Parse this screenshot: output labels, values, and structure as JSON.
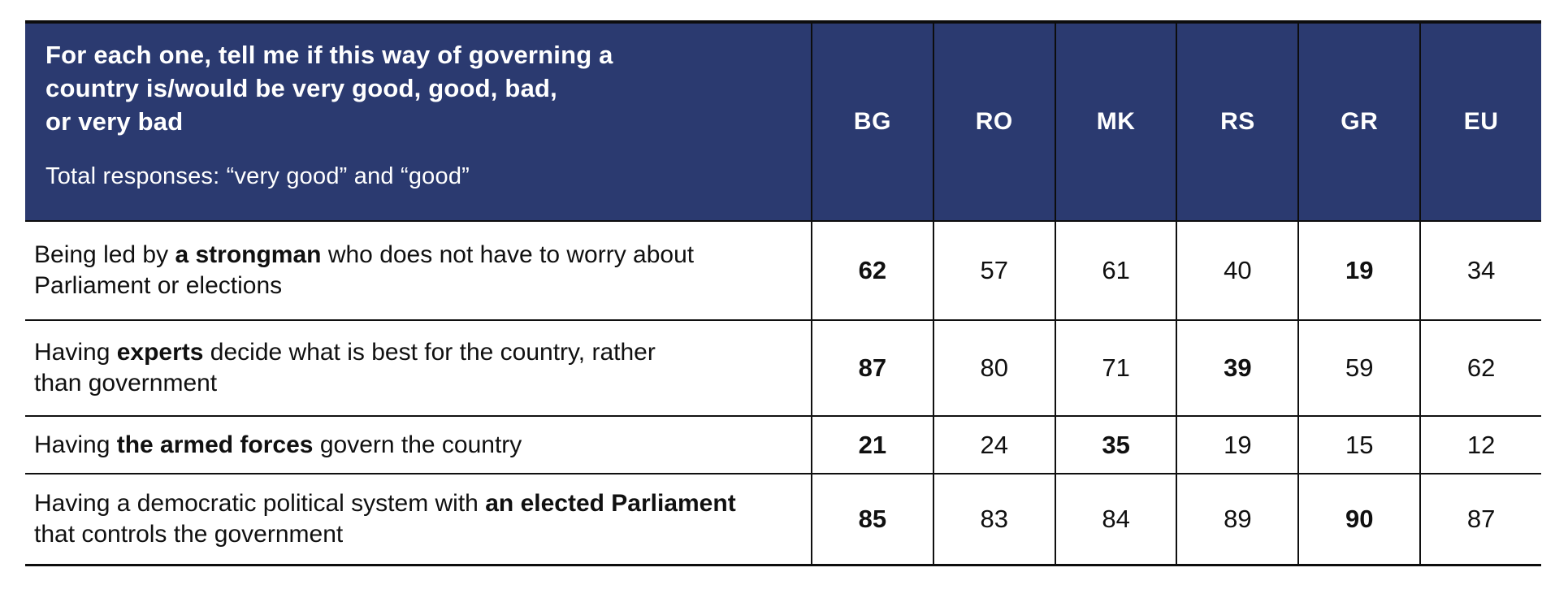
{
  "colors": {
    "header_bg": "#2B3A70",
    "header_text": "#FFFFFF",
    "body_text": "#101010",
    "border": "#0D0D0D"
  },
  "table": {
    "header": {
      "question_lines": [
        "For each one, tell me if this way of governing a",
        "country is/would be very good, good, bad,",
        "or very bad"
      ],
      "subtitle": "Total responses: “very good” and “good”",
      "columns": [
        "BG",
        "RO",
        "MK",
        "RS",
        "GR",
        "EU"
      ]
    },
    "rows": [
      {
        "label": {
          "pre": "Being led by ",
          "strong": "a strongman",
          "post": " who does not have to worry about Parliament or elections"
        },
        "values": [
          {
            "v": "62",
            "bold": true
          },
          {
            "v": "57",
            "bold": false
          },
          {
            "v": "61",
            "bold": false
          },
          {
            "v": "40",
            "bold": false
          },
          {
            "v": "19",
            "bold": true
          },
          {
            "v": "34",
            "bold": false
          }
        ]
      },
      {
        "label": {
          "pre": "Having ",
          "strong": "experts",
          "post": " decide what is best for the country, rather than government"
        },
        "values": [
          {
            "v": "87",
            "bold": true
          },
          {
            "v": "80",
            "bold": false
          },
          {
            "v": "71",
            "bold": false
          },
          {
            "v": "39",
            "bold": true
          },
          {
            "v": "59",
            "bold": false
          },
          {
            "v": "62",
            "bold": false
          }
        ]
      },
      {
        "label": {
          "pre": "Having ",
          "strong": "the armed forces",
          "post": " govern the country"
        },
        "values": [
          {
            "v": "21",
            "bold": true
          },
          {
            "v": "24",
            "bold": false
          },
          {
            "v": "35",
            "bold": true
          },
          {
            "v": "19",
            "bold": false
          },
          {
            "v": "15",
            "bold": false
          },
          {
            "v": "12",
            "bold": false
          }
        ]
      },
      {
        "label": {
          "pre": "Having a democratic political system with ",
          "strong": "an elected Parliament",
          "post": " that controls the government"
        },
        "values": [
          {
            "v": "85",
            "bold": true
          },
          {
            "v": "83",
            "bold": false
          },
          {
            "v": "84",
            "bold": false
          },
          {
            "v": "89",
            "bold": false
          },
          {
            "v": "90",
            "bold": true
          },
          {
            "v": "87",
            "bold": false
          }
        ]
      }
    ]
  },
  "chart_data": {
    "type": "table",
    "title": "For each one, tell me if this way of governing a country is/would be very good, good, bad, or very bad",
    "subtitle": "Total responses: “very good” and “good”",
    "columns": [
      "BG",
      "RO",
      "MK",
      "RS",
      "GR",
      "EU"
    ],
    "rows": [
      {
        "label": "Being led by a strongman who does not have to worry about Parliament or elections",
        "values": [
          62,
          57,
          61,
          40,
          19,
          34
        ],
        "bold_values": [
          62,
          19
        ]
      },
      {
        "label": "Having experts decide what is best for the country, rather than government",
        "values": [
          87,
          80,
          71,
          39,
          59,
          62
        ],
        "bold_values": [
          87,
          39
        ]
      },
      {
        "label": "Having the armed forces govern the country",
        "values": [
          21,
          24,
          35,
          19,
          15,
          12
        ],
        "bold_values": [
          21,
          35
        ]
      },
      {
        "label": "Having a democratic political system with an elected Parliament that controls the government",
        "values": [
          85,
          83,
          84,
          89,
          90,
          87
        ],
        "bold_values": [
          85,
          90
        ]
      }
    ],
    "layout": {
      "grid": "black rules between rows and columns",
      "header_bg": "#2B3A70",
      "value_range": [
        0,
        100
      ]
    }
  }
}
